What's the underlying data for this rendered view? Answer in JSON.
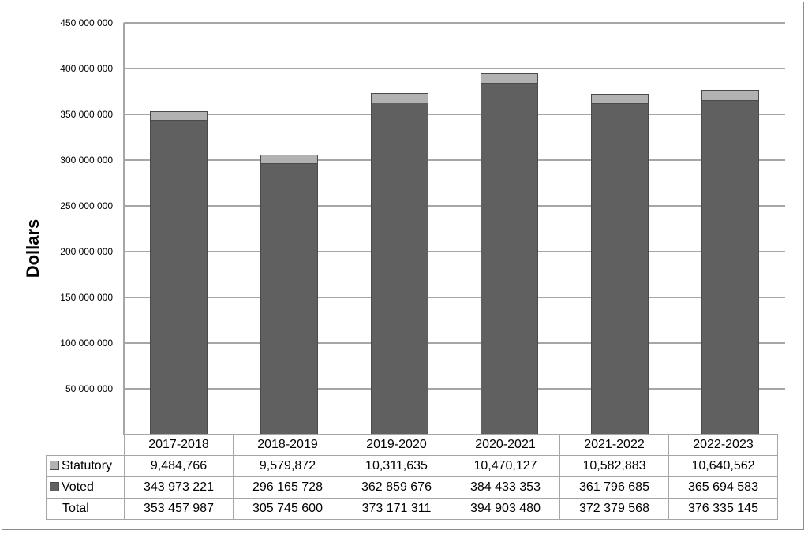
{
  "chart_data": {
    "type": "bar",
    "stacked": true,
    "title": "",
    "xlabel": "",
    "ylabel": "Dollars",
    "ylim": [
      0,
      450000000
    ],
    "yticks": [
      50000000,
      100000000,
      150000000,
      200000000,
      250000000,
      300000000,
      350000000,
      400000000,
      450000000
    ],
    "ytick_labels": [
      "50 000 000",
      "100 000 000",
      "150 000 000",
      "200 000 000",
      "250 000 000",
      "300 000 000",
      "350 000 000",
      "400 000 000",
      "450 000 000"
    ],
    "grid": true,
    "legend_position": "data-table",
    "categories": [
      "2017-2018",
      "2018-2019",
      "2019-2020",
      "2020-2021",
      "2021-2022",
      "2022-2023"
    ],
    "series": [
      {
        "name": "Statutory",
        "color": "#b2b2b2",
        "values": [
          9484766,
          9579872,
          10311635,
          10470127,
          10582883,
          10640562
        ],
        "labels": [
          "9,484,766",
          "9,579,872",
          "10,311,635",
          "10,470,127",
          "10,582,883",
          "10,640,562"
        ]
      },
      {
        "name": "Voted",
        "color": "#606060",
        "values": [
          343973221,
          296165728,
          362859676,
          384433353,
          361796685,
          365694583
        ],
        "labels": [
          "343 973 221",
          "296 165 728",
          "362 859 676",
          "384 433 353",
          "361 796 685",
          "365 694 583"
        ]
      }
    ],
    "totals": {
      "name": "Total",
      "values": [
        353457987,
        305745600,
        373171311,
        394903480,
        372379568,
        376335145
      ],
      "labels": [
        "353 457 987",
        "305 745 600",
        "373 171 311",
        "394 903 480",
        "372 379 568",
        "376 335 145"
      ]
    }
  },
  "table": {
    "headers": [
      "2017-2018",
      "2018-2019",
      "2019-2020",
      "2020-2021",
      "2021-2022",
      "2022-2023"
    ],
    "rows": [
      {
        "label": "Statutory",
        "cells": [
          "9,484,766",
          "9,579,872",
          "10,311,635",
          "10,470,127",
          "10,582,883",
          "10,640,562"
        ]
      },
      {
        "label": "Voted",
        "cells": [
          "343 973 221",
          "296 165 728",
          "362 859 676",
          "384 433 353",
          "361 796 685",
          "365 694 583"
        ]
      },
      {
        "label": "Total",
        "cells": [
          "353 457 987",
          "305 745 600",
          "373 171 311",
          "394 903 480",
          "372 379 568",
          "376 335 145"
        ]
      }
    ]
  }
}
